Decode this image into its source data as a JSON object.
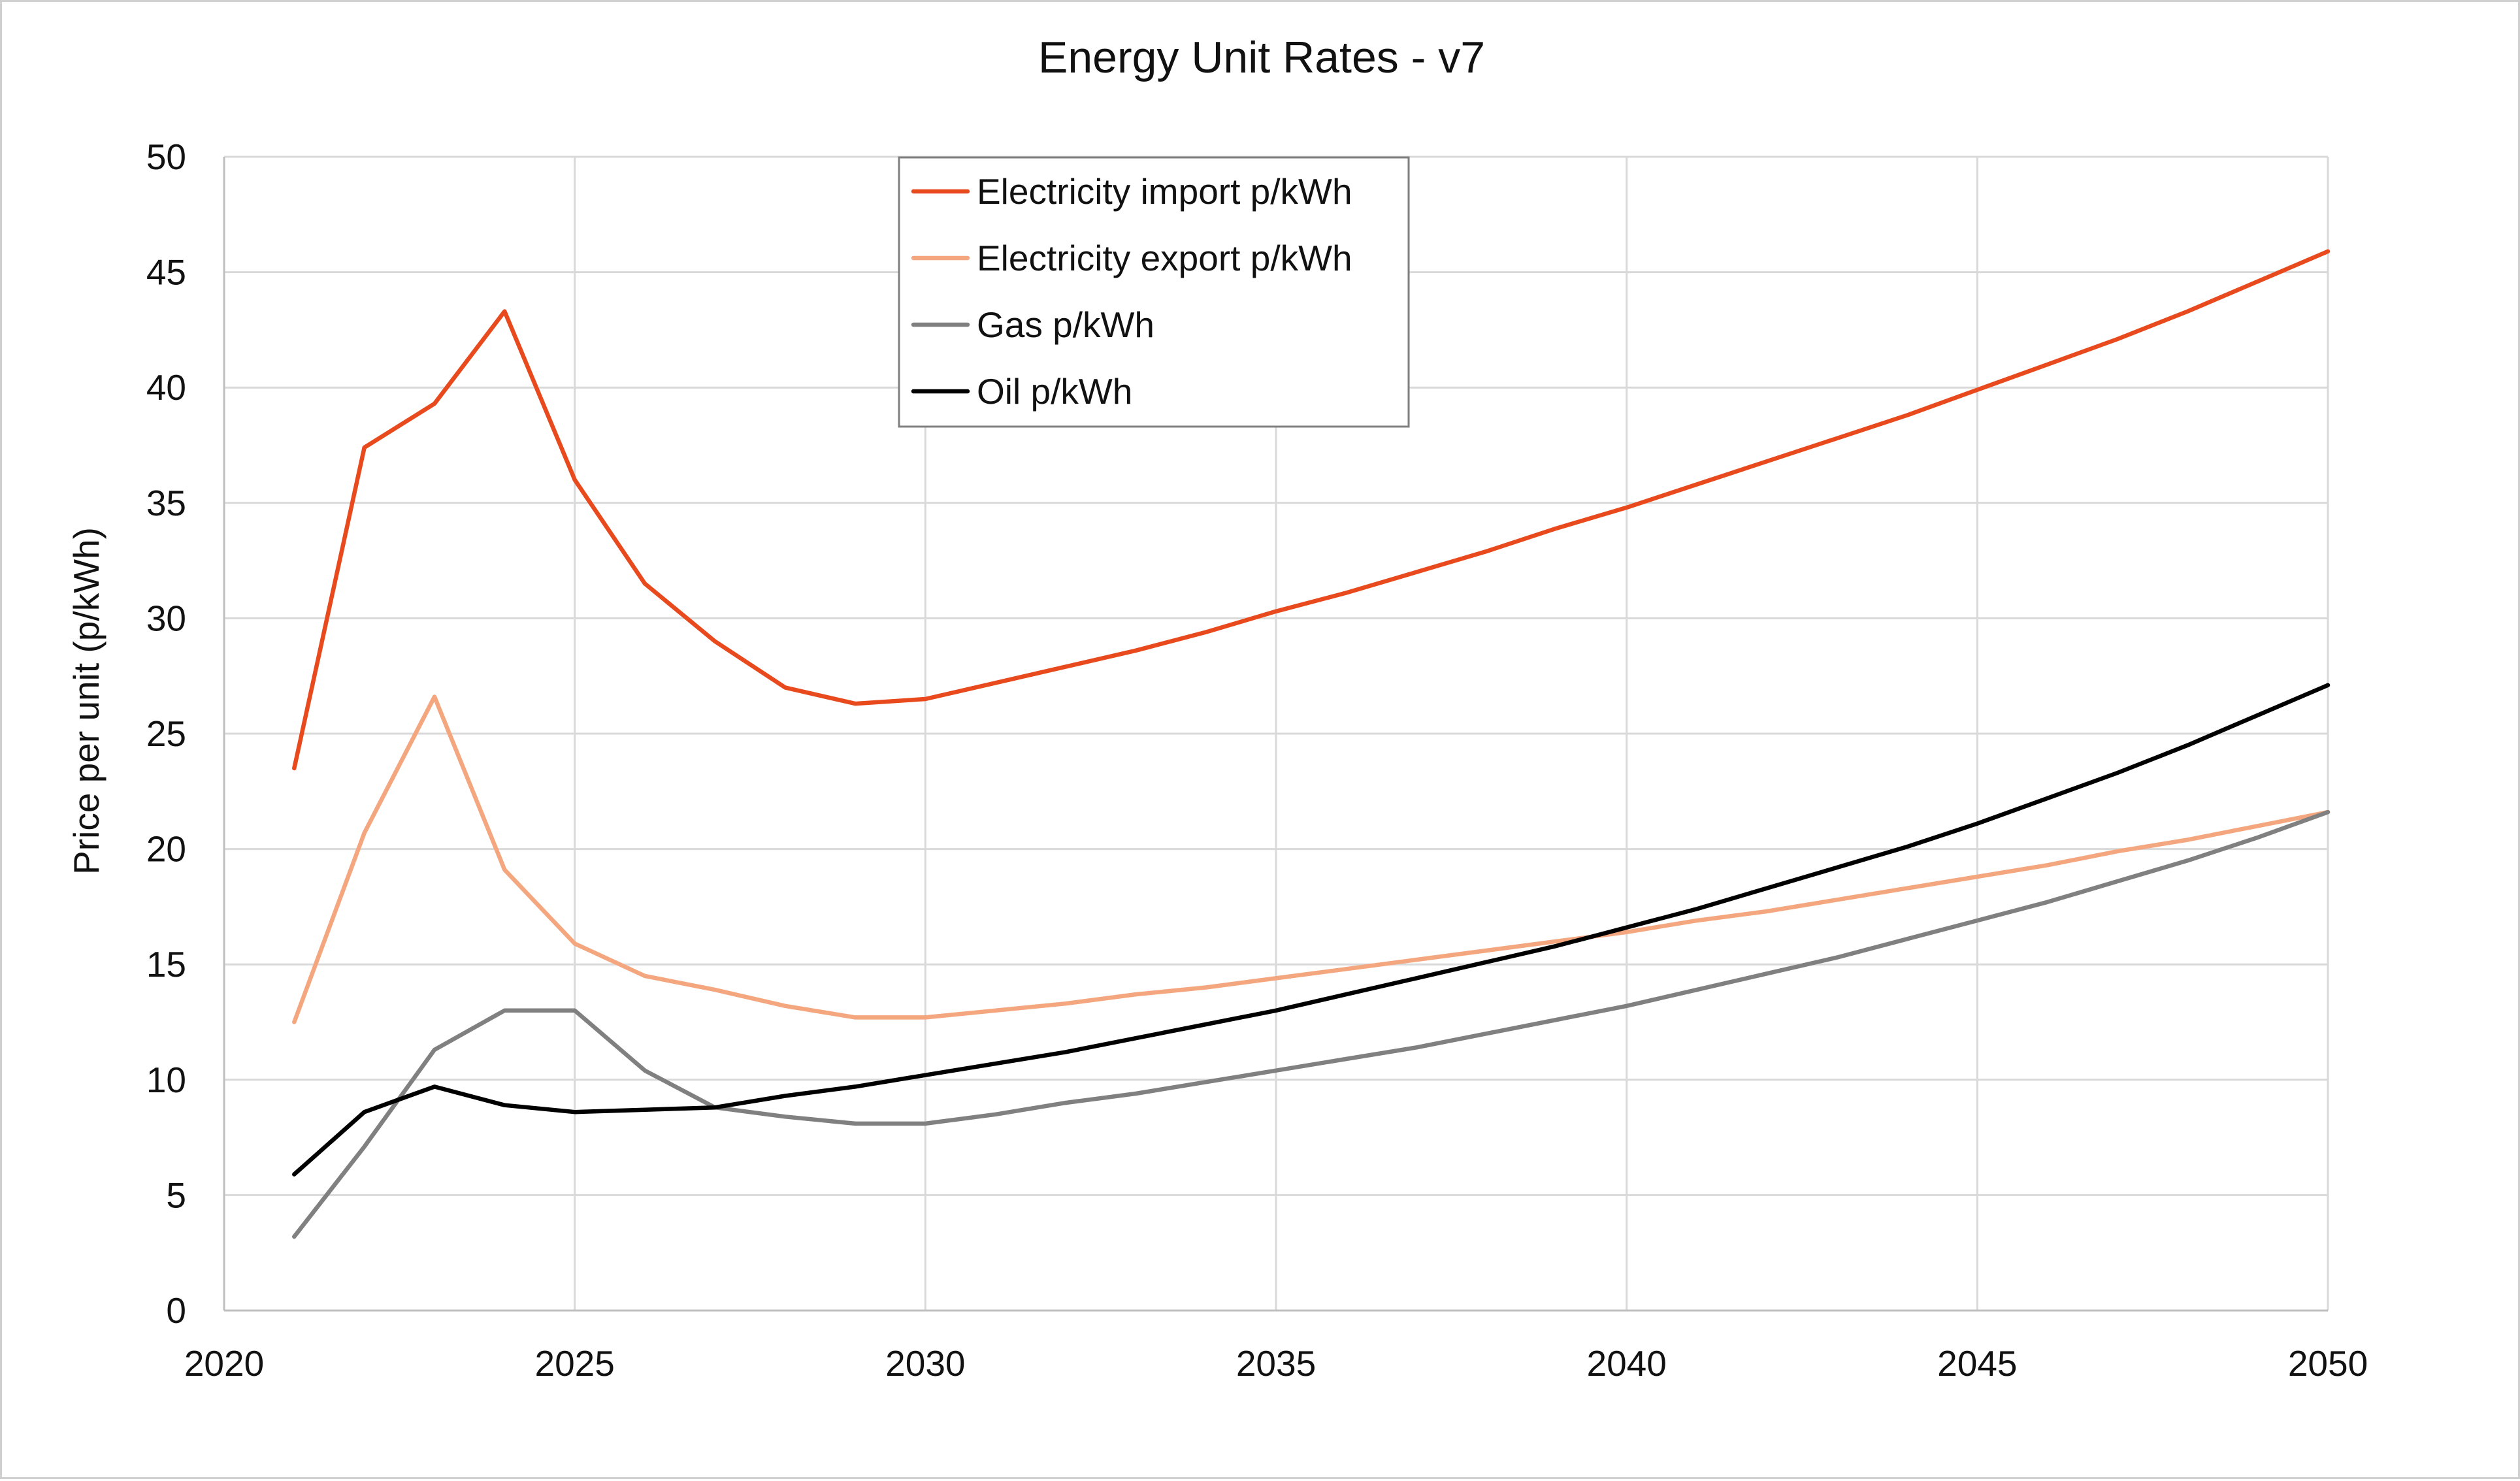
{
  "chart_data": {
    "type": "line",
    "title": "Energy Unit Rates - v7",
    "xlabel": "",
    "ylabel": "Price per unit (p/kWh)",
    "xlim": [
      2020,
      2050
    ],
    "ylim": [
      0,
      50
    ],
    "x_ticks": [
      "2020",
      "2025",
      "2030",
      "2035",
      "2040",
      "2045",
      "2050"
    ],
    "y_ticks": [
      "0",
      "5",
      "10",
      "15",
      "20",
      "25",
      "30",
      "35",
      "40",
      "45",
      "50"
    ],
    "grid": true,
    "legend_position": "top-center",
    "x": [
      2021,
      2022,
      2023,
      2024,
      2025,
      2026,
      2027,
      2028,
      2029,
      2030,
      2031,
      2032,
      2033,
      2034,
      2035,
      2036,
      2037,
      2038,
      2039,
      2040,
      2041,
      2042,
      2043,
      2044,
      2045,
      2046,
      2047,
      2048,
      2049,
      2050
    ],
    "series": [
      {
        "name": "Electricity import p/kWh",
        "color": "#e84a1e",
        "values": [
          23.5,
          37.4,
          39.3,
          43.3,
          36.0,
          31.5,
          29.0,
          27.0,
          26.3,
          26.5,
          27.2,
          27.9,
          28.6,
          29.4,
          30.3,
          31.1,
          32.0,
          32.9,
          33.9,
          34.8,
          35.8,
          36.8,
          37.8,
          38.8,
          39.9,
          41.0,
          42.1,
          43.3,
          44.6,
          45.9
        ]
      },
      {
        "name": "Electricity export p/kWh",
        "color": "#f4a67e",
        "values": [
          12.5,
          20.7,
          26.6,
          19.1,
          15.9,
          14.5,
          13.9,
          13.2,
          12.7,
          12.7,
          13.0,
          13.3,
          13.7,
          14.0,
          14.4,
          14.8,
          15.2,
          15.6,
          16.0,
          16.4,
          16.9,
          17.3,
          17.8,
          18.3,
          18.8,
          19.3,
          19.9,
          20.4,
          21.0,
          21.6
        ]
      },
      {
        "name": "Gas p/kWh",
        "color": "#808080",
        "values": [
          3.2,
          7.1,
          11.3,
          13.0,
          13.0,
          10.4,
          8.8,
          8.4,
          8.1,
          8.1,
          8.5,
          9.0,
          9.4,
          9.9,
          10.4,
          10.9,
          11.4,
          12.0,
          12.6,
          13.2,
          13.9,
          14.6,
          15.3,
          16.1,
          16.9,
          17.7,
          18.6,
          19.5,
          20.5,
          21.6
        ]
      },
      {
        "name": "Oil p/kWh",
        "color": "#000000",
        "values": [
          5.9,
          8.6,
          9.7,
          8.9,
          8.6,
          8.7,
          8.8,
          9.3,
          9.7,
          10.2,
          10.7,
          11.2,
          11.8,
          12.4,
          13.0,
          13.7,
          14.4,
          15.1,
          15.8,
          16.6,
          17.4,
          18.3,
          19.2,
          20.1,
          21.1,
          22.2,
          23.3,
          24.5,
          25.8,
          27.1
        ]
      }
    ]
  }
}
